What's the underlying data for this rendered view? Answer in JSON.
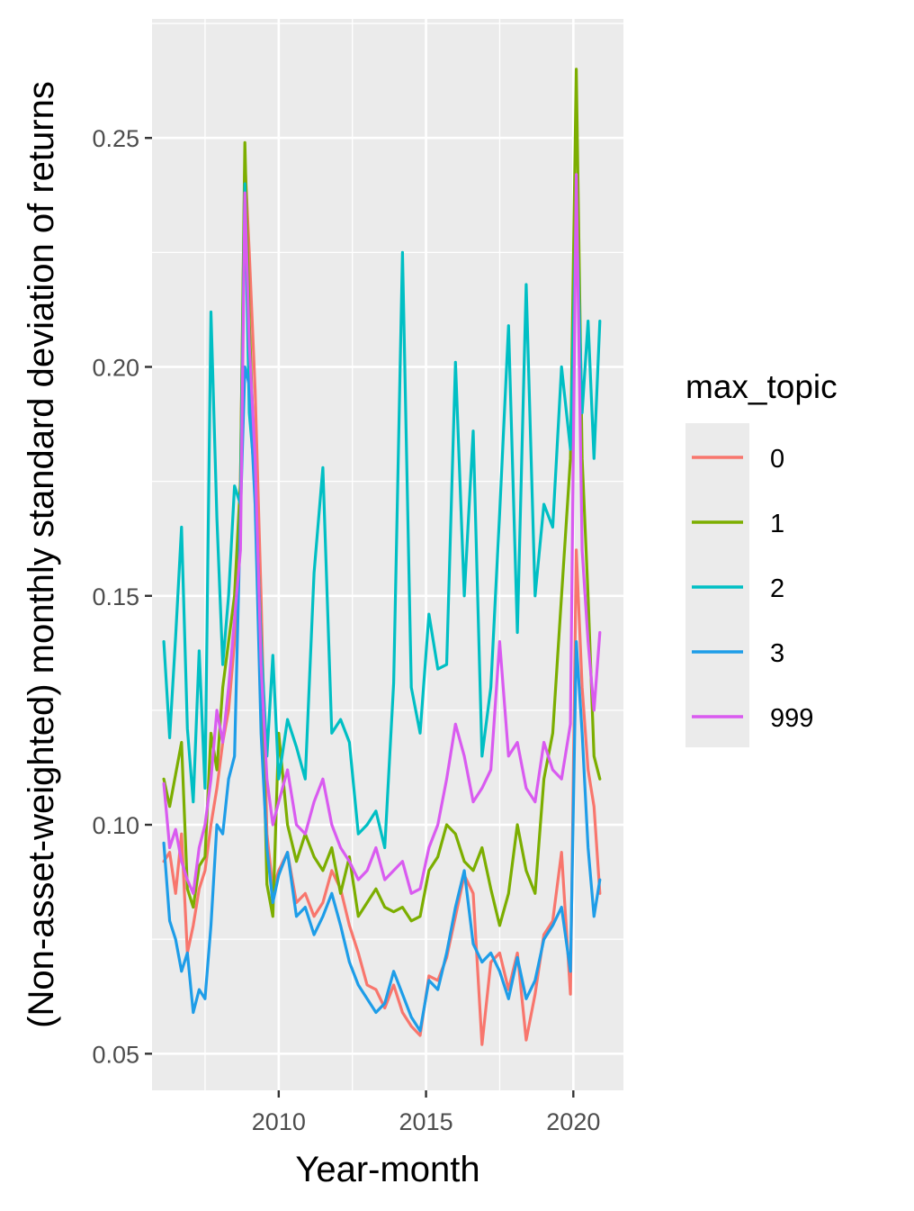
{
  "chart_data": {
    "type": "line",
    "title": "",
    "xlabel": "Year-month",
    "ylabel": "(Non-asset-weighted) monthly standard deviation of returns",
    "xlim": [
      2005.7,
      2021.7
    ],
    "ylim": [
      0.042,
      0.276
    ],
    "x_ticks": [
      2010,
      2015,
      2020
    ],
    "x_tick_labels": [
      "2010",
      "2015",
      "2020"
    ],
    "y_ticks": [
      0.05,
      0.1,
      0.15,
      0.2,
      0.25
    ],
    "y_tick_labels": [
      "0.05",
      "0.10",
      "0.15",
      "0.20",
      "0.25"
    ],
    "grid": true,
    "legend": {
      "title": "max_topic",
      "position": "right"
    },
    "series": [
      {
        "name": "0",
        "color": "#F8766D",
        "x": [
          2006.1,
          2006.3,
          2006.5,
          2006.7,
          2006.9,
          2007.1,
          2007.3,
          2007.5,
          2007.7,
          2007.9,
          2008.1,
          2008.3,
          2008.5,
          2008.7,
          2008.85,
          2009.0,
          2009.2,
          2009.4,
          2009.6,
          2009.8,
          2010.0,
          2010.3,
          2010.6,
          2010.9,
          2011.2,
          2011.5,
          2011.8,
          2012.1,
          2012.4,
          2012.7,
          2013.0,
          2013.3,
          2013.6,
          2013.9,
          2014.2,
          2014.5,
          2014.8,
          2015.1,
          2015.4,
          2015.7,
          2016.0,
          2016.3,
          2016.6,
          2016.9,
          2017.2,
          2017.5,
          2017.8,
          2018.1,
          2018.4,
          2018.7,
          2019.0,
          2019.3,
          2019.6,
          2019.9,
          2020.1,
          2020.3,
          2020.5,
          2020.7,
          2020.9
        ],
        "values": [
          0.092,
          0.094,
          0.085,
          0.098,
          0.072,
          0.078,
          0.086,
          0.09,
          0.1,
          0.108,
          0.118,
          0.125,
          0.14,
          0.175,
          0.245,
          0.225,
          0.195,
          0.15,
          0.098,
          0.086,
          0.09,
          0.094,
          0.083,
          0.085,
          0.08,
          0.083,
          0.09,
          0.086,
          0.078,
          0.072,
          0.065,
          0.064,
          0.06,
          0.065,
          0.059,
          0.056,
          0.054,
          0.067,
          0.066,
          0.071,
          0.08,
          0.089,
          0.085,
          0.052,
          0.07,
          0.072,
          0.064,
          0.072,
          0.053,
          0.063,
          0.076,
          0.079,
          0.094,
          0.063,
          0.16,
          0.13,
          0.112,
          0.104,
          0.085
        ]
      },
      {
        "name": "1",
        "color": "#7CAE00",
        "x": [
          2006.1,
          2006.3,
          2006.5,
          2006.7,
          2006.9,
          2007.1,
          2007.3,
          2007.5,
          2007.7,
          2007.9,
          2008.1,
          2008.3,
          2008.5,
          2008.7,
          2008.85,
          2009.0,
          2009.2,
          2009.4,
          2009.6,
          2009.8,
          2010.0,
          2010.3,
          2010.6,
          2010.9,
          2011.2,
          2011.5,
          2011.8,
          2012.1,
          2012.4,
          2012.7,
          2013.0,
          2013.3,
          2013.6,
          2013.9,
          2014.2,
          2014.5,
          2014.8,
          2015.1,
          2015.4,
          2015.7,
          2016.0,
          2016.3,
          2016.6,
          2016.9,
          2017.2,
          2017.5,
          2017.8,
          2018.1,
          2018.4,
          2018.7,
          2019.0,
          2019.3,
          2019.6,
          2019.9,
          2020.1,
          2020.3,
          2020.5,
          2020.7,
          2020.9
        ],
        "values": [
          0.11,
          0.104,
          0.111,
          0.118,
          0.086,
          0.082,
          0.091,
          0.093,
          0.12,
          0.112,
          0.13,
          0.14,
          0.15,
          0.175,
          0.249,
          0.21,
          0.175,
          0.14,
          0.087,
          0.08,
          0.12,
          0.1,
          0.092,
          0.098,
          0.093,
          0.09,
          0.095,
          0.085,
          0.093,
          0.08,
          0.083,
          0.086,
          0.082,
          0.081,
          0.082,
          0.079,
          0.08,
          0.09,
          0.093,
          0.1,
          0.098,
          0.092,
          0.09,
          0.095,
          0.086,
          0.078,
          0.085,
          0.1,
          0.09,
          0.085,
          0.11,
          0.12,
          0.15,
          0.18,
          0.265,
          0.18,
          0.15,
          0.115,
          0.11
        ]
      },
      {
        "name": "2",
        "color": "#00BFC4",
        "x": [
          2006.1,
          2006.3,
          2006.5,
          2006.7,
          2006.9,
          2007.1,
          2007.3,
          2007.5,
          2007.7,
          2007.9,
          2008.1,
          2008.3,
          2008.5,
          2008.7,
          2008.85,
          2009.0,
          2009.2,
          2009.4,
          2009.6,
          2009.8,
          2010.0,
          2010.3,
          2010.6,
          2010.9,
          2011.2,
          2011.5,
          2011.8,
          2012.1,
          2012.4,
          2012.7,
          2013.0,
          2013.3,
          2013.6,
          2013.9,
          2014.2,
          2014.5,
          2014.8,
          2015.1,
          2015.4,
          2015.7,
          2016.0,
          2016.3,
          2016.6,
          2016.9,
          2017.2,
          2017.5,
          2017.8,
          2018.1,
          2018.4,
          2018.7,
          2019.0,
          2019.3,
          2019.6,
          2019.9,
          2020.1,
          2020.3,
          2020.5,
          2020.7,
          2020.9
        ],
        "values": [
          0.14,
          0.119,
          0.141,
          0.165,
          0.121,
          0.105,
          0.138,
          0.108,
          0.212,
          0.167,
          0.135,
          0.15,
          0.174,
          0.17,
          0.24,
          0.19,
          0.175,
          0.14,
          0.115,
          0.137,
          0.11,
          0.123,
          0.117,
          0.11,
          0.155,
          0.178,
          0.12,
          0.123,
          0.118,
          0.098,
          0.1,
          0.103,
          0.095,
          0.131,
          0.225,
          0.13,
          0.12,
          0.146,
          0.134,
          0.135,
          0.201,
          0.15,
          0.186,
          0.115,
          0.13,
          0.168,
          0.209,
          0.142,
          0.218,
          0.15,
          0.17,
          0.165,
          0.2,
          0.182,
          0.235,
          0.19,
          0.21,
          0.18,
          0.21
        ]
      },
      {
        "name": "3",
        "color": "#1E9DE8",
        "x": [
          2006.1,
          2006.3,
          2006.5,
          2006.7,
          2006.9,
          2007.1,
          2007.3,
          2007.5,
          2007.7,
          2007.9,
          2008.1,
          2008.3,
          2008.5,
          2008.7,
          2008.85,
          2009.0,
          2009.2,
          2009.4,
          2009.6,
          2009.8,
          2010.0,
          2010.3,
          2010.6,
          2010.9,
          2011.2,
          2011.5,
          2011.8,
          2012.1,
          2012.4,
          2012.7,
          2013.0,
          2013.3,
          2013.6,
          2013.9,
          2014.2,
          2014.5,
          2014.8,
          2015.1,
          2015.4,
          2015.7,
          2016.0,
          2016.3,
          2016.6,
          2016.9,
          2017.2,
          2017.5,
          2017.8,
          2018.1,
          2018.4,
          2018.7,
          2019.0,
          2019.3,
          2019.6,
          2019.9,
          2020.1,
          2020.3,
          2020.5,
          2020.7,
          2020.9
        ],
        "values": [
          0.096,
          0.079,
          0.075,
          0.068,
          0.072,
          0.059,
          0.064,
          0.062,
          0.078,
          0.1,
          0.098,
          0.11,
          0.115,
          0.168,
          0.2,
          0.196,
          0.17,
          0.12,
          0.095,
          0.083,
          0.089,
          0.094,
          0.08,
          0.082,
          0.076,
          0.08,
          0.085,
          0.078,
          0.07,
          0.065,
          0.062,
          0.059,
          0.061,
          0.068,
          0.063,
          0.058,
          0.055,
          0.066,
          0.064,
          0.072,
          0.082,
          0.09,
          0.074,
          0.07,
          0.072,
          0.068,
          0.062,
          0.071,
          0.062,
          0.066,
          0.075,
          0.078,
          0.082,
          0.068,
          0.14,
          0.12,
          0.095,
          0.08,
          0.088
        ]
      },
      {
        "name": "999",
        "color": "#D95BF0",
        "x": [
          2006.1,
          2006.3,
          2006.5,
          2006.7,
          2006.9,
          2007.1,
          2007.3,
          2007.5,
          2007.7,
          2007.9,
          2008.1,
          2008.3,
          2008.5,
          2008.7,
          2008.85,
          2009.0,
          2009.2,
          2009.4,
          2009.6,
          2009.8,
          2010.0,
          2010.3,
          2010.6,
          2010.9,
          2011.2,
          2011.5,
          2011.8,
          2012.1,
          2012.4,
          2012.7,
          2013.0,
          2013.3,
          2013.6,
          2013.9,
          2014.2,
          2014.5,
          2014.8,
          2015.1,
          2015.4,
          2015.7,
          2016.0,
          2016.3,
          2016.6,
          2016.9,
          2017.2,
          2017.5,
          2017.8,
          2018.1,
          2018.4,
          2018.7,
          2019.0,
          2019.3,
          2019.6,
          2019.9,
          2020.1,
          2020.3,
          2020.5,
          2020.7,
          2020.9
        ],
        "values": [
          0.109,
          0.095,
          0.099,
          0.092,
          0.088,
          0.085,
          0.095,
          0.1,
          0.11,
          0.125,
          0.118,
          0.13,
          0.145,
          0.16,
          0.238,
          0.205,
          0.18,
          0.135,
          0.11,
          0.1,
          0.105,
          0.112,
          0.1,
          0.098,
          0.105,
          0.11,
          0.1,
          0.095,
          0.092,
          0.088,
          0.09,
          0.095,
          0.088,
          0.09,
          0.092,
          0.085,
          0.086,
          0.095,
          0.1,
          0.11,
          0.122,
          0.115,
          0.105,
          0.108,
          0.112,
          0.14,
          0.115,
          0.118,
          0.108,
          0.105,
          0.118,
          0.112,
          0.11,
          0.122,
          0.242,
          0.16,
          0.14,
          0.125,
          0.142
        ]
      }
    ]
  }
}
